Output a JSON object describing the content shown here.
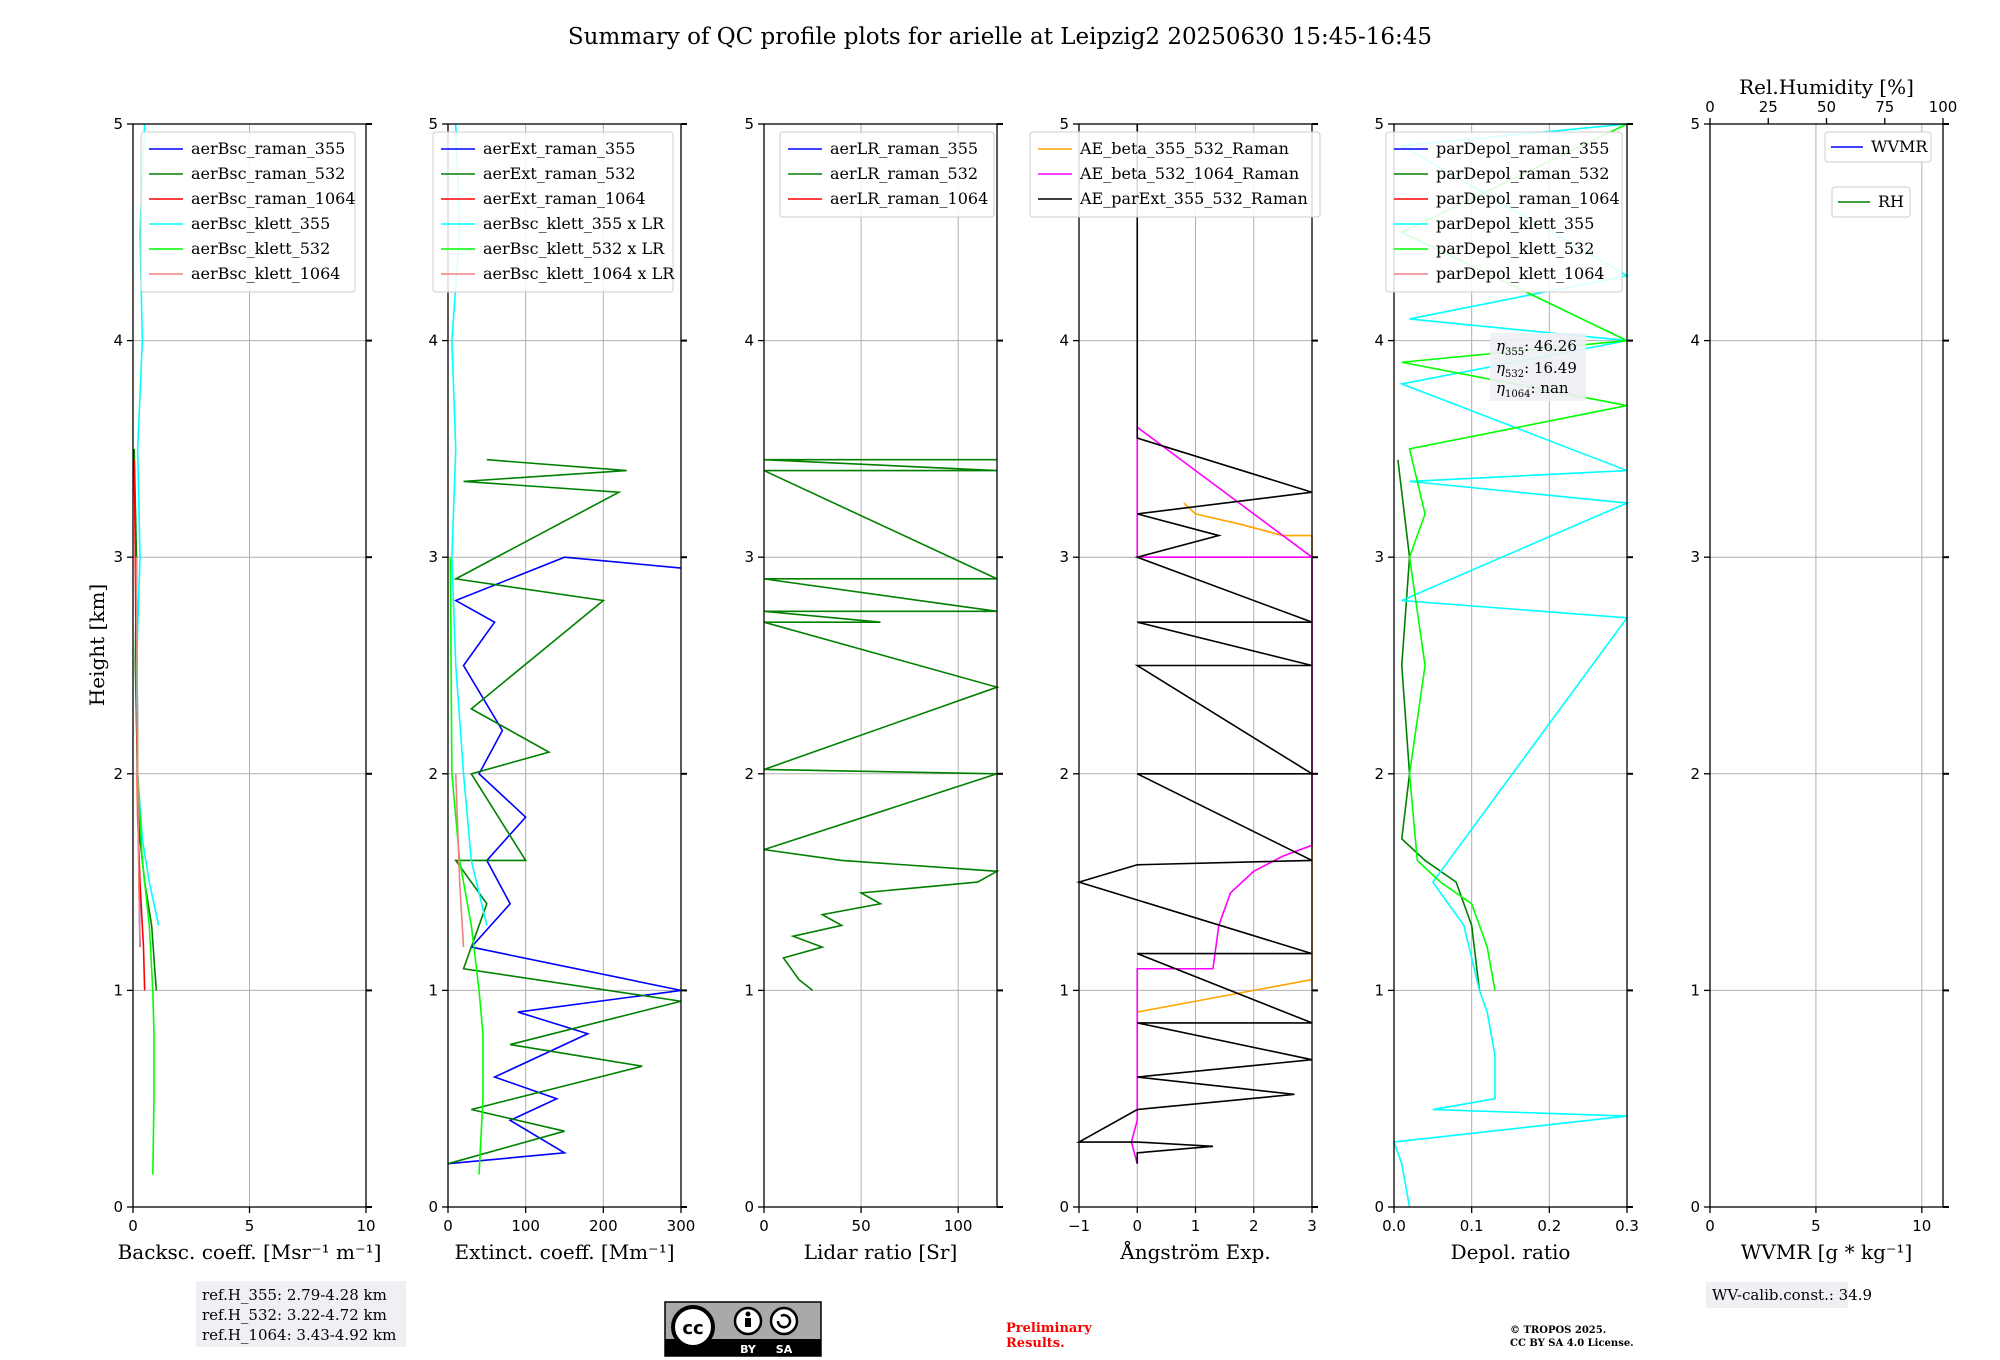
{
  "title": "Summary of QC profile plots for arielle at Leipzig2 20250630 15:45-16:45",
  "ylabel": "Height [km]",
  "panels": [
    {
      "xlabel": "Backsc. coeff. [Msr$^{-1}$ m$^{-1}$]",
      "xlabel_text": "Backsc. coeff. [Msr⁻¹ m⁻¹]",
      "xlim": [
        0,
        10
      ],
      "xticks": [
        "0",
        "5",
        "10"
      ],
      "legend": [
        "aerBsc_raman_355",
        "aerBsc_raman_532",
        "aerBsc_raman_1064",
        "aerBsc_klett_355",
        "aerBsc_klett_532",
        "aerBsc_klett_1064"
      ]
    },
    {
      "xlabel_text": "Extinct. coeff. [Mm⁻¹]",
      "xlim": [
        0,
        300
      ],
      "xticks": [
        "0",
        "100",
        "200",
        "300"
      ],
      "legend": [
        "aerExt_raman_355",
        "aerExt_raman_532",
        "aerExt_raman_1064",
        "aerBsc_klett_355 x LR",
        "aerBsc_klett_532 x LR",
        "aerBsc_klett_1064 x LR"
      ]
    },
    {
      "xlabel_text": "Lidar ratio [Sr]",
      "xlim": [
        0,
        120
      ],
      "xticks": [
        "0",
        "50",
        "100"
      ],
      "legend": [
        "aerLR_raman_355",
        "aerLR_raman_532",
        "aerLR_raman_1064"
      ]
    },
    {
      "xlabel_text": "Ångström Exp.",
      "xlim": [
        -1,
        3
      ],
      "xticks": [
        "−1",
        "0",
        "1",
        "2",
        "3"
      ],
      "legend": [
        "AE_beta_355_532_Raman",
        "AE_beta_532_1064_Raman",
        "AE_parExt_355_532_Raman"
      ]
    },
    {
      "xlabel_text": "Depol. ratio",
      "xlim": [
        0,
        0.3
      ],
      "xticks": [
        "0.0",
        "0.1",
        "0.2",
        "0.3"
      ],
      "legend": [
        "parDepol_raman_355",
        "parDepol_raman_532",
        "parDepol_raman_1064",
        "parDepol_klett_355",
        "parDepol_klett_532",
        "parDepol_klett_1064"
      ]
    },
    {
      "xlabel_text": "WVMR [g * kg⁻¹]",
      "xlim": [
        0,
        11
      ],
      "xticks": [
        "0",
        "5",
        "10"
      ],
      "top_label": "Rel.Humidity [%]",
      "top_ticks": [
        "0",
        "25",
        "50",
        "75",
        "100"
      ],
      "legend": [
        "WVMR",
        "RH"
      ]
    }
  ],
  "yticks": [
    "0",
    "1",
    "2",
    "3",
    "4",
    "5"
  ],
  "colors": {
    "raman_355": "#0000ff",
    "raman_532": "#008000",
    "raman_1064": "#ff0000",
    "klett_355": "#00ffff",
    "klett_532": "#00ff00",
    "klett_1064": "#f08080",
    "ae1": "#ffa500",
    "ae2": "#ff00ff",
    "ae3": "#000000",
    "grid": "#b0b0b0",
    "prelim": "#ff0000"
  },
  "annotations": {
    "eta_355": "46.26",
    "eta_532": "16.49",
    "eta_1064": "nan",
    "refH_355": "ref.H_355: 2.79-4.28 km",
    "refH_532": "ref.H_532: 3.22-4.72 km",
    "refH_1064": "ref.H_1064: 3.43-4.92 km",
    "wv_calib": "WV-calib.const.: 34.9",
    "preliminary_1": "Preliminary",
    "preliminary_2": "Results.",
    "copyright_1": "© TROPOS 2025.",
    "copyright_2": "CC BY SA 4.0 License.",
    "cc_by": "BY",
    "cc_sa": "SA"
  },
  "chart_data": [
    {
      "type": "line",
      "xlabel": "Backsc. coeff. [Msr⁻¹ m⁻¹]",
      "ylabel": "Height [km]",
      "xlim": [
        0,
        10
      ],
      "ylim": [
        0,
        5
      ],
      "grid": true,
      "legend_position": "top-right",
      "series": [
        {
          "name": "aerBsc_raman_355",
          "color": "#0000ff",
          "x": [
            0.3,
            0.2,
            0.15
          ],
          "y": [
            1.2,
            2.0,
            3.0
          ]
        },
        {
          "name": "aerBsc_raman_532",
          "color": "#008000",
          "x": [
            1.0,
            0.8,
            0.5,
            0.3,
            0.2,
            0.1,
            0.15,
            0.05
          ],
          "y": [
            1.0,
            1.3,
            1.5,
            1.7,
            2.0,
            2.5,
            3.0,
            3.5
          ]
        },
        {
          "name": "aerBsc_raman_1064",
          "color": "#ff0000",
          "x": [
            0.5,
            0.45,
            0.3,
            0.2,
            0.15,
            0.1,
            0.05
          ],
          "y": [
            1.0,
            1.2,
            1.5,
            1.8,
            2.3,
            3.0,
            3.45
          ]
        },
        {
          "name": "aerBsc_klett_355",
          "color": "#00ffff",
          "x": [
            1.1,
            0.7,
            0.4,
            0.2,
            0.15,
            0.3,
            0.2,
            0.4,
            0.3,
            0.5
          ],
          "y": [
            1.3,
            1.5,
            1.7,
            2.0,
            2.5,
            3.0,
            3.5,
            4.0,
            4.5,
            5.0
          ]
        },
        {
          "name": "aerBsc_klett_532",
          "color": "#00ff00",
          "x": [
            0.85,
            0.9,
            0.9,
            0.85,
            0.7,
            0.4,
            0.2,
            0.15
          ],
          "y": [
            0.15,
            0.5,
            0.8,
            1.0,
            1.3,
            1.6,
            2.0,
            3.0
          ]
        },
        {
          "name": "aerBsc_klett_1064",
          "color": "#f08080",
          "x": [
            0.3,
            0.25,
            0.2,
            0.15
          ],
          "y": [
            1.2,
            1.5,
            2.0,
            3.0
          ]
        }
      ]
    },
    {
      "type": "line",
      "xlabel": "Extinct. coeff. [Mm⁻¹]",
      "xlim": [
        0,
        300
      ],
      "ylim": [
        0,
        5
      ],
      "grid": true,
      "legend_position": "top-right",
      "series": [
        {
          "name": "aerExt_raman_355",
          "color": "#0000ff",
          "x": [
            0,
            150,
            80,
            140,
            60,
            180,
            90,
            300,
            30,
            80,
            50,
            100,
            40,
            70,
            20,
            60,
            10,
            150,
            300
          ],
          "y": [
            0.2,
            0.25,
            0.4,
            0.5,
            0.6,
            0.8,
            0.9,
            1.0,
            1.2,
            1.4,
            1.6,
            1.8,
            2.0,
            2.2,
            2.5,
            2.7,
            2.8,
            3.0,
            2.95
          ]
        },
        {
          "name": "aerExt_raman_532",
          "color": "#008000",
          "x": [
            0,
            150,
            30,
            250,
            80,
            300,
            20,
            50,
            10,
            100,
            30,
            130,
            30,
            200,
            10,
            220,
            20,
            230,
            50
          ],
          "y": [
            0.2,
            0.35,
            0.45,
            0.65,
            0.75,
            0.95,
            1.1,
            1.4,
            1.6,
            1.6,
            2.0,
            2.1,
            2.3,
            2.8,
            2.9,
            3.3,
            3.35,
            3.4,
            3.45
          ]
        },
        {
          "name": "aerBsc_klett_355 x LR",
          "color": "#00ffff",
          "x": [
            50,
            30,
            20,
            10,
            5,
            10,
            5,
            15,
            10
          ],
          "y": [
            1.3,
            1.6,
            2.0,
            2.5,
            3.0,
            3.5,
            4.0,
            4.5,
            5.0
          ]
        },
        {
          "name": "aerBsc_klett_532 x LR",
          "color": "#00ff00",
          "x": [
            40,
            45,
            45,
            40,
            30,
            15,
            5,
            3
          ],
          "y": [
            0.15,
            0.5,
            0.8,
            1.0,
            1.3,
            1.6,
            2.0,
            3.0
          ]
        },
        {
          "name": "aerBsc_klett_1064 x LR",
          "color": "#f08080",
          "x": [
            20,
            15,
            10
          ],
          "y": [
            1.2,
            1.5,
            2.0
          ]
        }
      ]
    },
    {
      "type": "line",
      "xlabel": "Lidar ratio [Sr]",
      "xlim": [
        0,
        120
      ],
      "ylim": [
        0,
        5
      ],
      "grid": true,
      "legend_position": "top-right",
      "series": [
        {
          "name": "aerLR_raman_532",
          "color": "#008000",
          "x": [
            25,
            18,
            10,
            30,
            15,
            40,
            30,
            60,
            50,
            110,
            120,
            40,
            0,
            120,
            0,
            120,
            0,
            60,
            0,
            120,
            0,
            120,
            0,
            120,
            0,
            120
          ],
          "y": [
            1.0,
            1.05,
            1.15,
            1.2,
            1.25,
            1.3,
            1.35,
            1.4,
            1.45,
            1.5,
            1.55,
            1.6,
            1.65,
            2.0,
            2.02,
            2.4,
            2.7,
            2.7,
            2.75,
            2.75,
            2.9,
            2.9,
            3.4,
            3.4,
            3.45,
            3.45
          ]
        }
      ]
    },
    {
      "type": "line",
      "xlabel": "Ångström Exp.",
      "xlim": [
        -1,
        3
      ],
      "ylim": [
        0,
        5
      ],
      "grid": true,
      "legend_position": "top-right",
      "series": [
        {
          "name": "AE_beta_355_532_Raman",
          "color": "#ffa500",
          "x": [
            0,
            1,
            2,
            3,
            3,
            2.5,
            1.8,
            1,
            0.8
          ],
          "y": [
            0.9,
            0.95,
            1.0,
            1.05,
            3.1,
            3.1,
            3.15,
            3.2,
            3.25
          ]
        },
        {
          "name": "AE_beta_532_1064_Raman",
          "color": "#ff00ff",
          "x": [
            0,
            -0.1,
            0,
            0,
            1.3,
            1.4,
            1.6,
            2.0,
            2.5,
            3.0,
            3.0,
            0,
            0,
            3.0
          ],
          "y": [
            0.2,
            0.3,
            0.4,
            1.1,
            1.1,
            1.3,
            1.45,
            1.55,
            1.62,
            1.67,
            3.0,
            3.0,
            3.6,
            3.0
          ]
        },
        {
          "name": "AE_parExt_355_532_Raman",
          "color": "#000000",
          "x": [
            0,
            0,
            1.3,
            0,
            -1,
            0,
            2.7,
            0,
            3.0,
            0,
            3.0,
            0,
            3.0,
            -1,
            0,
            3.0,
            0,
            3.0,
            0,
            3.0,
            0,
            3.0,
            0,
            1.4,
            0,
            3.0,
            0,
            0
          ],
          "y": [
            0.2,
            0.25,
            0.28,
            0.3,
            0.3,
            0.45,
            0.52,
            0.6,
            0.68,
            0.85,
            0.85,
            1.17,
            1.17,
            1.5,
            1.58,
            1.6,
            2.0,
            2.0,
            2.5,
            2.5,
            2.7,
            2.7,
            3.0,
            3.1,
            3.2,
            3.3,
            3.55,
            5.0
          ]
        }
      ]
    },
    {
      "type": "line",
      "xlabel": "Depol. ratio",
      "xlim": [
        0,
        0.3
      ],
      "ylim": [
        0,
        5
      ],
      "grid": true,
      "legend_position": "top-right",
      "series": [
        {
          "name": "parDepol_raman_532",
          "color": "#008000",
          "x": [
            0.11,
            0.1,
            0.08,
            0.04,
            0.01,
            0.02,
            0.01,
            0.02,
            0.005
          ],
          "y": [
            1.0,
            1.3,
            1.5,
            1.6,
            1.7,
            2.0,
            2.5,
            3.0,
            3.45
          ]
        },
        {
          "name": "parDepol_klett_355",
          "color": "#00ffff",
          "x": [
            0.02,
            0.01,
            0.0,
            0.3,
            0.05,
            0.13,
            0.13,
            0.12,
            0.11,
            0.09,
            0.05,
            0.3,
            0.01,
            0.3,
            0.02,
            0.3,
            0.01,
            0.3,
            0.02,
            0.3,
            0.01,
            0.3
          ],
          "y": [
            0.0,
            0.2,
            0.3,
            0.42,
            0.45,
            0.5,
            0.7,
            0.9,
            1.0,
            1.3,
            1.5,
            2.72,
            2.8,
            3.25,
            3.35,
            3.4,
            3.8,
            4.0,
            4.1,
            4.3,
            4.9,
            5.0
          ]
        },
        {
          "name": "parDepol_klett_532",
          "color": "#00ff00",
          "x": [
            0.13,
            0.12,
            0.1,
            0.06,
            0.03,
            0.02,
            0.04,
            0.02,
            0.04,
            0.02,
            0.3,
            0.01,
            0.3,
            0.01,
            0.3
          ],
          "y": [
            1.0,
            1.2,
            1.4,
            1.5,
            1.6,
            2.0,
            2.5,
            3.0,
            3.2,
            3.5,
            3.7,
            3.9,
            4.0,
            4.5,
            5.0
          ]
        }
      ]
    },
    {
      "type": "line",
      "xlabel": "WVMR [g * kg⁻¹]",
      "xlim": [
        0,
        11
      ],
      "ylim": [
        0,
        5
      ],
      "grid": true,
      "legend_position": "top-right",
      "series": [
        {
          "name": "WVMR",
          "color": "#0000ff",
          "x": [],
          "y": []
        },
        {
          "name": "RH",
          "color": "#008000",
          "x": [],
          "y": []
        }
      ]
    }
  ]
}
